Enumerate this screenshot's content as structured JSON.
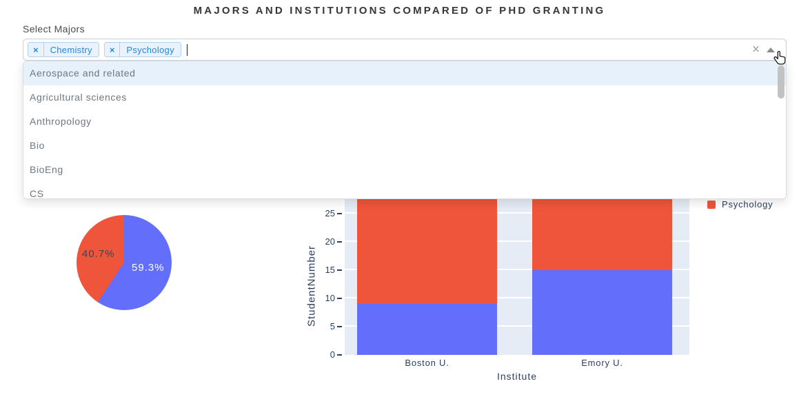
{
  "header": {
    "title": "MAJORS AND INSTITUTIONS COMPARED OF PHD GRANTING"
  },
  "select_majors": {
    "label": "Select Majors",
    "tags": [
      {
        "label": "Chemistry"
      },
      {
        "label": "Psychology"
      }
    ],
    "remove_icon_glyph": "×",
    "clear_icon_glyph": "×",
    "dropdown_options": [
      {
        "label": "Aerospace and related",
        "highlighted": true
      },
      {
        "label": "Agricultural sciences"
      },
      {
        "label": "Anthropology"
      },
      {
        "label": "Bio"
      },
      {
        "label": "BioEng"
      },
      {
        "label": "CS"
      }
    ]
  },
  "colors": {
    "series_blue": "#636EFA",
    "series_red": "#EF553B",
    "plot_background": "#E5ECF6",
    "axis_text": "#2A3F5F",
    "tag_blue": "#1E88E5"
  },
  "chart_data": [
    {
      "type": "pie",
      "labels": [
        "Psychology",
        "Chemistry"
      ],
      "values": [
        59.3,
        40.7
      ],
      "display_labels": [
        "59.3%",
        "40.7%"
      ],
      "colors": [
        "#636EFA",
        "#EF553B"
      ]
    },
    {
      "type": "bar",
      "stacked": true,
      "categories": [
        "Boston U.",
        "Emory U."
      ],
      "series": [
        {
          "name": "Chemistry",
          "color": "#636EFA",
          "values": [
            9,
            15
          ]
        },
        {
          "name": "Psychology",
          "color": "#EF553B",
          "values": [
            20,
            15
          ]
        }
      ],
      "xlabel": "Institute",
      "ylabel": "StudentNumber",
      "yticks": [
        0,
        5,
        10,
        15,
        20,
        25
      ],
      "ylim_visible": [
        0,
        27.5
      ],
      "grid": true,
      "legend": {
        "position": "right-top",
        "visible_items": [
          {
            "label": "Psychology",
            "color": "#EF553B"
          }
        ]
      }
    }
  ]
}
